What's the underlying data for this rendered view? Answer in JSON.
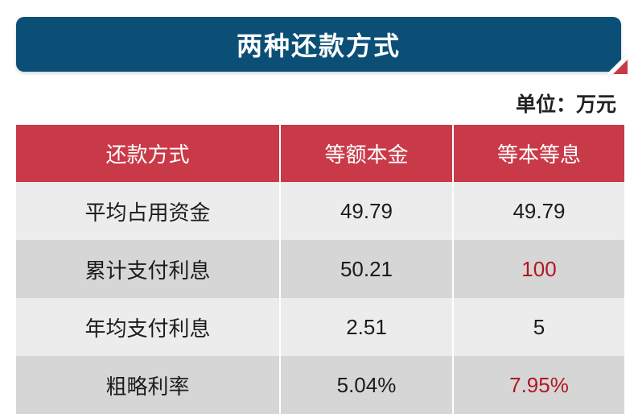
{
  "title": "两种还款方式",
  "unit_label": "单位：万元",
  "colors": {
    "title_bar": "#0b4f76",
    "header": "#c93a48",
    "highlight": "#b01820",
    "row_light": "#ececec",
    "row_dark": "#d6d6d6"
  },
  "table": {
    "headers": [
      "还款方式",
      "等额本金",
      "等本等息"
    ],
    "rows": [
      {
        "label": "平均占用资金",
        "equal_principal": "49.79",
        "equal_interest": "49.79",
        "highlight": false
      },
      {
        "label": "累计支付利息",
        "equal_principal": "50.21",
        "equal_interest": "100",
        "highlight": true
      },
      {
        "label": "年均支付利息",
        "equal_principal": "2.51",
        "equal_interest": "5",
        "highlight": false
      },
      {
        "label": "粗略利率",
        "equal_principal": "5.04%",
        "equal_interest": "7.95%",
        "highlight": true
      }
    ]
  }
}
